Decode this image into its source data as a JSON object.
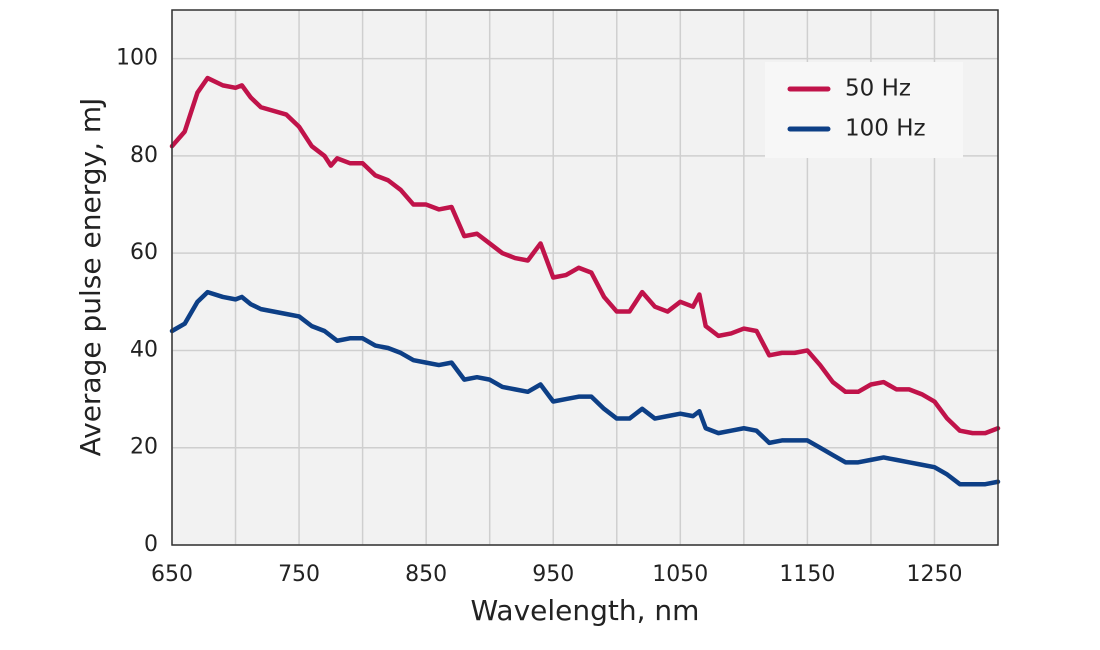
{
  "chart_data": {
    "type": "line",
    "xlabel": "Wavelength, nm",
    "ylabel": "Average pulse energy, mJ",
    "x": [
      650,
      660,
      670,
      678,
      690,
      700,
      705,
      712,
      720,
      740,
      750,
      760,
      770,
      775,
      780,
      790,
      800,
      810,
      820,
      830,
      840,
      850,
      860,
      870,
      880,
      890,
      900,
      910,
      920,
      930,
      940,
      950,
      960,
      970,
      980,
      990,
      1000,
      1010,
      1020,
      1030,
      1040,
      1050,
      1060,
      1065,
      1070,
      1080,
      1090,
      1100,
      1110,
      1120,
      1130,
      1140,
      1150,
      1160,
      1170,
      1180,
      1190,
      1200,
      1210,
      1220,
      1230,
      1240,
      1250,
      1260,
      1270,
      1280,
      1290,
      1300
    ],
    "series": [
      {
        "name": "50 Hz",
        "color": "#c0134a",
        "values": [
          82,
          85,
          93,
          96,
          94.5,
          94,
          94.5,
          92,
          90,
          88.5,
          86,
          82,
          80,
          78,
          79.5,
          78.5,
          78.5,
          76,
          75,
          73,
          70,
          70,
          69,
          69.5,
          63.5,
          64,
          62,
          60,
          59,
          58.5,
          62,
          55,
          55.5,
          57,
          56,
          51,
          48,
          48,
          52,
          49,
          48,
          50,
          49,
          51.5,
          45,
          43,
          43.5,
          44.5,
          44,
          39,
          39.5,
          39.5,
          40,
          37,
          33.5,
          31.5,
          31.5,
          33,
          33.5,
          32,
          32,
          31,
          29.5,
          26,
          23.5,
          23,
          23,
          24
        ]
      },
      {
        "name": "100 Hz",
        "color": "#0d3f86",
        "values": [
          44,
          45.5,
          50,
          52,
          51,
          50.5,
          51,
          49.5,
          48.5,
          47.5,
          47,
          45,
          44,
          43,
          42,
          42.5,
          42.5,
          41,
          40.5,
          39.5,
          38,
          37.5,
          37,
          37.5,
          34,
          34.5,
          34,
          32.5,
          32,
          31.5,
          33,
          29.5,
          30,
          30.5,
          30.5,
          28,
          26,
          26,
          28,
          26,
          26.5,
          27,
          26.5,
          27.5,
          24,
          23,
          23.5,
          24,
          23.5,
          21,
          21.5,
          21.5,
          21.5,
          20,
          18.5,
          17,
          17,
          17.5,
          18,
          17.5,
          17,
          16.5,
          16,
          14.5,
          12.5,
          12.5,
          12.5,
          13
        ]
      }
    ],
    "xlim": [
      650,
      1300
    ],
    "xticks": [
      650,
      750,
      850,
      950,
      1050,
      1150,
      1250
    ],
    "xminor": [
      700,
      800,
      900,
      1000,
      1100,
      1200
    ],
    "ylim": [
      0,
      110
    ],
    "yticks": [
      0,
      20,
      40,
      60,
      80,
      100
    ],
    "grid": true,
    "legend": "upper right"
  }
}
